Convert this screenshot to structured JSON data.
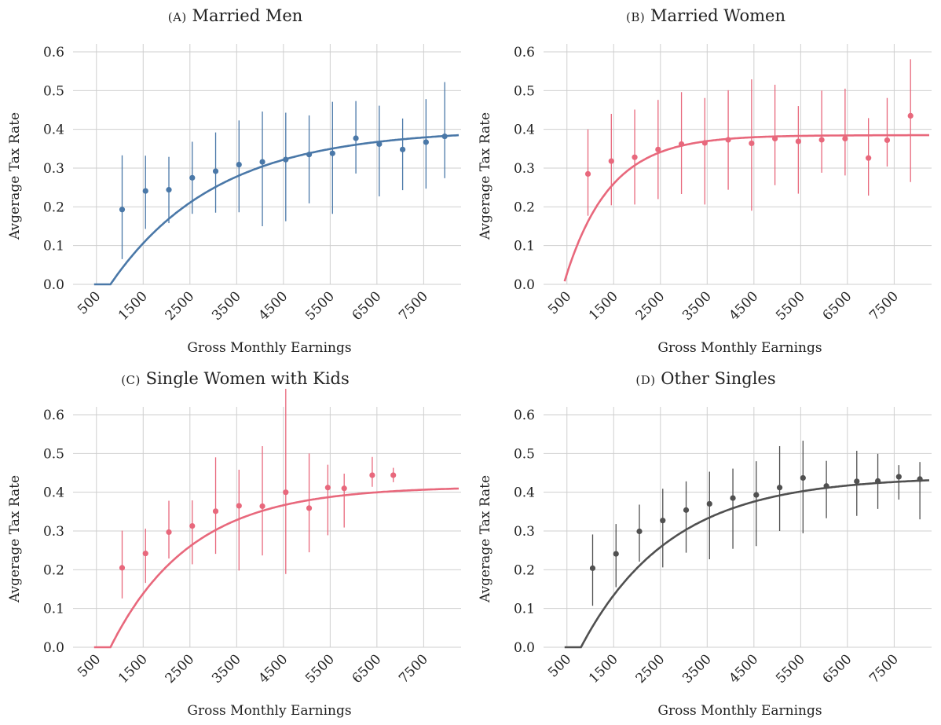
{
  "chart_data": [
    {
      "type": "scatter",
      "panel_label": "(A)",
      "title": "Married Men",
      "xlabel": "Gross Monthly Earnings",
      "ylabel": "Avgerage Tax Rate",
      "xlim": [
        0,
        8300
      ],
      "ylim": [
        0,
        0.6
      ],
      "xticks": [
        500,
        1500,
        2500,
        3500,
        4500,
        5500,
        6500,
        7500
      ],
      "yticks": [
        0.0,
        0.1,
        0.2,
        0.3,
        0.4,
        0.5,
        0.6
      ],
      "color": "#4a78a8",
      "fit": {
        "threshold": 800,
        "asymptote": 0.4,
        "k": 0.00044
      },
      "points": [
        {
          "x": 1050,
          "y": 0.193,
          "lo": 0.065,
          "hi": 0.333
        },
        {
          "x": 1550,
          "y": 0.241,
          "lo": 0.143,
          "hi": 0.332
        },
        {
          "x": 2050,
          "y": 0.244,
          "lo": 0.158,
          "hi": 0.329
        },
        {
          "x": 2550,
          "y": 0.275,
          "lo": 0.182,
          "hi": 0.368
        },
        {
          "x": 3050,
          "y": 0.292,
          "lo": 0.185,
          "hi": 0.392
        },
        {
          "x": 3550,
          "y": 0.309,
          "lo": 0.186,
          "hi": 0.423
        },
        {
          "x": 4050,
          "y": 0.316,
          "lo": 0.15,
          "hi": 0.446
        },
        {
          "x": 4550,
          "y": 0.322,
          "lo": 0.163,
          "hi": 0.443
        },
        {
          "x": 5050,
          "y": 0.335,
          "lo": 0.209,
          "hi": 0.436
        },
        {
          "x": 5550,
          "y": 0.338,
          "lo": 0.182,
          "hi": 0.471
        },
        {
          "x": 6050,
          "y": 0.377,
          "lo": 0.286,
          "hi": 0.473
        },
        {
          "x": 6550,
          "y": 0.362,
          "lo": 0.227,
          "hi": 0.461
        },
        {
          "x": 7050,
          "y": 0.348,
          "lo": 0.243,
          "hi": 0.428
        },
        {
          "x": 7550,
          "y": 0.367,
          "lo": 0.247,
          "hi": 0.478
        },
        {
          "x": 7950,
          "y": 0.382,
          "lo": 0.274,
          "hi": 0.522
        }
      ]
    },
    {
      "type": "scatter",
      "panel_label": "(B)",
      "title": "Married Women",
      "xlabel": "Gross Monthly Earnings",
      "ylabel": "Avgerage Tax Rate",
      "xlim": [
        0,
        8300
      ],
      "ylim": [
        0,
        0.6
      ],
      "xticks": [
        500,
        1500,
        2500,
        3500,
        4500,
        5500,
        6500,
        7500
      ],
      "yticks": [
        0.0,
        0.1,
        0.2,
        0.3,
        0.4,
        0.5,
        0.6
      ],
      "color": "#e8687c",
      "fit": {
        "threshold": 430,
        "asymptote": 0.385,
        "k": 0.00105
      },
      "points": [
        {
          "x": 950,
          "y": 0.285,
          "lo": 0.177,
          "hi": 0.4
        },
        {
          "x": 1450,
          "y": 0.318,
          "lo": 0.204,
          "hi": 0.44
        },
        {
          "x": 1950,
          "y": 0.328,
          "lo": 0.206,
          "hi": 0.451
        },
        {
          "x": 2450,
          "y": 0.348,
          "lo": 0.22,
          "hi": 0.476
        },
        {
          "x": 2950,
          "y": 0.362,
          "lo": 0.233,
          "hi": 0.496
        },
        {
          "x": 3450,
          "y": 0.365,
          "lo": 0.206,
          "hi": 0.481
        },
        {
          "x": 3950,
          "y": 0.373,
          "lo": 0.244,
          "hi": 0.501
        },
        {
          "x": 4450,
          "y": 0.364,
          "lo": 0.19,
          "hi": 0.529
        },
        {
          "x": 4950,
          "y": 0.376,
          "lo": 0.256,
          "hi": 0.515
        },
        {
          "x": 5450,
          "y": 0.369,
          "lo": 0.234,
          "hi": 0.46
        },
        {
          "x": 5950,
          "y": 0.373,
          "lo": 0.288,
          "hi": 0.5
        },
        {
          "x": 6450,
          "y": 0.376,
          "lo": 0.281,
          "hi": 0.505
        },
        {
          "x": 6950,
          "y": 0.326,
          "lo": 0.229,
          "hi": 0.429
        },
        {
          "x": 7350,
          "y": 0.372,
          "lo": 0.304,
          "hi": 0.481
        },
        {
          "x": 7850,
          "y": 0.435,
          "lo": 0.264,
          "hi": 0.581
        }
      ]
    },
    {
      "type": "scatter",
      "panel_label": "(C)",
      "title": "Single Women with Kids",
      "xlabel": "Gross Monthly Earnings",
      "ylabel": "Avgerage Tax Rate",
      "xlim": [
        0,
        8300
      ],
      "ylim": [
        0,
        0.6
      ],
      "xticks": [
        500,
        1500,
        2500,
        3500,
        4500,
        5500,
        6500,
        7500
      ],
      "yticks": [
        0.0,
        0.1,
        0.2,
        0.3,
        0.4,
        0.5,
        0.6
      ],
      "color": "#e8687c",
      "fit": {
        "threshold": 800,
        "asymptote": 0.415,
        "k": 0.00058
      },
      "points": [
        {
          "x": 1050,
          "y": 0.205,
          "lo": 0.126,
          "hi": 0.301
        },
        {
          "x": 1550,
          "y": 0.242,
          "lo": 0.166,
          "hi": 0.306
        },
        {
          "x": 2050,
          "y": 0.297,
          "lo": 0.229,
          "hi": 0.378
        },
        {
          "x": 2550,
          "y": 0.313,
          "lo": 0.214,
          "hi": 0.379
        },
        {
          "x": 3050,
          "y": 0.351,
          "lo": 0.241,
          "hi": 0.49
        },
        {
          "x": 3550,
          "y": 0.365,
          "lo": 0.198,
          "hi": 0.458
        },
        {
          "x": 4050,
          "y": 0.364,
          "lo": 0.237,
          "hi": 0.519
        },
        {
          "x": 4550,
          "y": 0.4,
          "lo": 0.189,
          "hi": 0.667
        },
        {
          "x": 5050,
          "y": 0.359,
          "lo": 0.245,
          "hi": 0.5
        },
        {
          "x": 5450,
          "y": 0.412,
          "lo": 0.289,
          "hi": 0.471
        },
        {
          "x": 5800,
          "y": 0.41,
          "lo": 0.309,
          "hi": 0.448
        },
        {
          "x": 6400,
          "y": 0.444,
          "lo": 0.414,
          "hi": 0.491
        },
        {
          "x": 6850,
          "y": 0.444,
          "lo": 0.426,
          "hi": 0.463
        }
      ]
    },
    {
      "type": "scatter",
      "panel_label": "(D)",
      "title": "Other Singles",
      "xlabel": "Gross Monthly Earnings",
      "ylabel": "Avgerage Tax Rate",
      "xlim": [
        0,
        8300
      ],
      "ylim": [
        0,
        0.6
      ],
      "xticks": [
        500,
        1500,
        2500,
        3500,
        4500,
        5500,
        6500,
        7500
      ],
      "yticks": [
        0.0,
        0.1,
        0.2,
        0.3,
        0.4,
        0.5,
        0.6
      ],
      "color": "#505050",
      "fit": {
        "threshold": 800,
        "asymptote": 0.44,
        "k": 0.00052
      },
      "points": [
        {
          "x": 1050,
          "y": 0.204,
          "lo": 0.107,
          "hi": 0.291
        },
        {
          "x": 1550,
          "y": 0.241,
          "lo": 0.155,
          "hi": 0.318
        },
        {
          "x": 2050,
          "y": 0.299,
          "lo": 0.221,
          "hi": 0.368
        },
        {
          "x": 2550,
          "y": 0.327,
          "lo": 0.206,
          "hi": 0.409
        },
        {
          "x": 3050,
          "y": 0.354,
          "lo": 0.244,
          "hi": 0.428
        },
        {
          "x": 3550,
          "y": 0.37,
          "lo": 0.227,
          "hi": 0.453
        },
        {
          "x": 4050,
          "y": 0.385,
          "lo": 0.254,
          "hi": 0.461
        },
        {
          "x": 4550,
          "y": 0.393,
          "lo": 0.261,
          "hi": 0.48
        },
        {
          "x": 5050,
          "y": 0.412,
          "lo": 0.3,
          "hi": 0.519
        },
        {
          "x": 5550,
          "y": 0.437,
          "lo": 0.294,
          "hi": 0.533
        },
        {
          "x": 6050,
          "y": 0.416,
          "lo": 0.333,
          "hi": 0.481
        },
        {
          "x": 6700,
          "y": 0.428,
          "lo": 0.339,
          "hi": 0.507
        },
        {
          "x": 7150,
          "y": 0.429,
          "lo": 0.357,
          "hi": 0.499
        },
        {
          "x": 7600,
          "y": 0.44,
          "lo": 0.381,
          "hi": 0.47
        },
        {
          "x": 8050,
          "y": 0.434,
          "lo": 0.33,
          "hi": 0.478
        }
      ]
    }
  ]
}
